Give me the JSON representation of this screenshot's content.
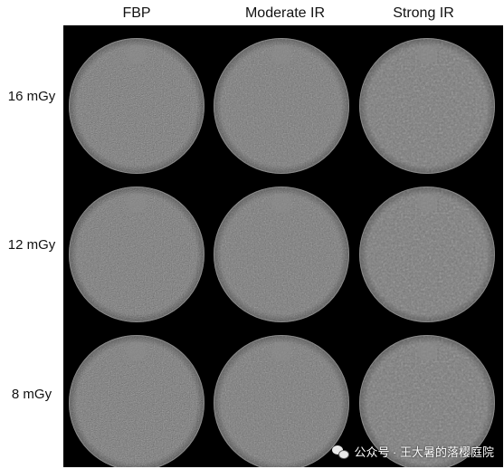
{
  "columns": [
    "FBP",
    "Moderate IR",
    "Strong IR"
  ],
  "rows": [
    "16 mGy",
    "12 mGy",
    "8 mGy"
  ],
  "watermark": {
    "icon": "wechat-icon",
    "text": "公众号 · 王大暑的落樱庭院"
  },
  "colors": {
    "background": "#000000",
    "phantom_gray": "#7a7a7a"
  }
}
